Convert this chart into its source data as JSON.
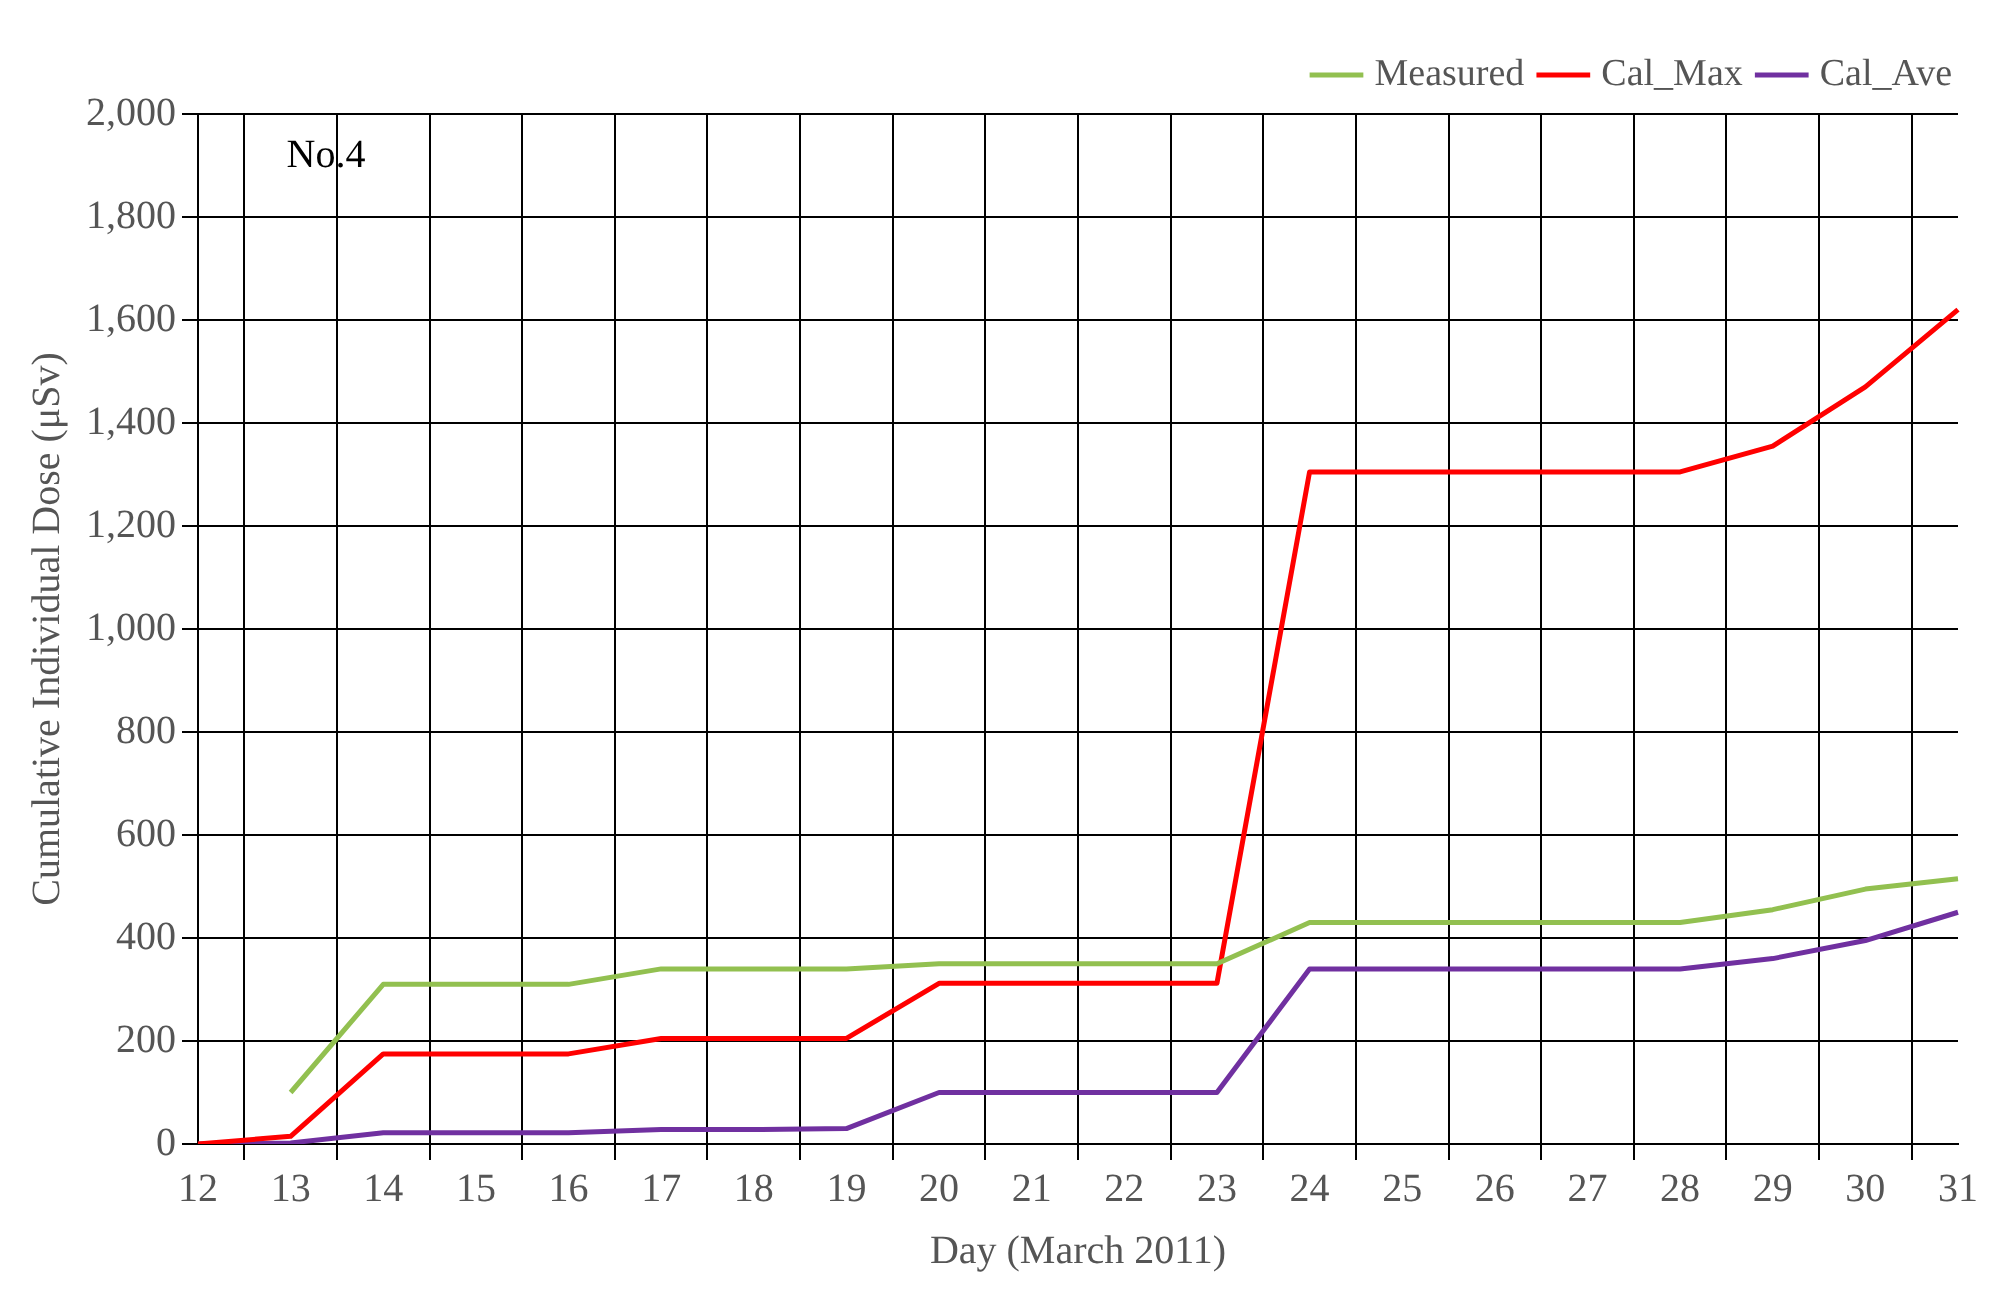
{
  "chart_data": {
    "type": "line",
    "xlabel": "Day (March 2011)",
    "ylabel": "Cumulative Individual Dose (μSv)",
    "categories": [
      "12",
      "13",
      "14",
      "15",
      "16",
      "17",
      "18",
      "19",
      "20",
      "21",
      "22",
      "23",
      "24",
      "25",
      "26",
      "27",
      "28",
      "29",
      "30",
      "31"
    ],
    "series": [
      {
        "name": "Measured",
        "color": "#92c050",
        "values": [
          null,
          100,
          310,
          310,
          310,
          340,
          340,
          340,
          350,
          350,
          350,
          350,
          430,
          430,
          430,
          430,
          430,
          455,
          495,
          515
        ]
      },
      {
        "name": "Cal_Max",
        "color": "#ff0000",
        "values": [
          0,
          15,
          175,
          175,
          175,
          205,
          205,
          205,
          312,
          312,
          312,
          312,
          1305,
          1305,
          1305,
          1305,
          1305,
          1355,
          1470,
          1620
        ]
      },
      {
        "name": "Cal_Ave",
        "color": "#7030a0",
        "values": [
          0,
          2,
          22,
          22,
          22,
          28,
          28,
          30,
          100,
          100,
          100,
          100,
          340,
          340,
          340,
          340,
          340,
          360,
          395,
          450
        ]
      }
    ],
    "ylim": [
      0,
      2000
    ],
    "yticks": [
      0,
      200,
      400,
      600,
      800,
      {
        "value": 1000,
        "label": "1,000"
      },
      {
        "value": 1200,
        "label": "1,200"
      },
      {
        "value": 1400,
        "label": "1,400"
      },
      {
        "value": 1600,
        "label": "1,600"
      },
      {
        "value": 1800,
        "label": "1,800"
      },
      {
        "value": 2000,
        "label": "2,000"
      }
    ],
    "grid": true,
    "legend": "top right",
    "marker": "none",
    "line_style": "solid",
    "annotations": [
      "No.4"
    ]
  }
}
